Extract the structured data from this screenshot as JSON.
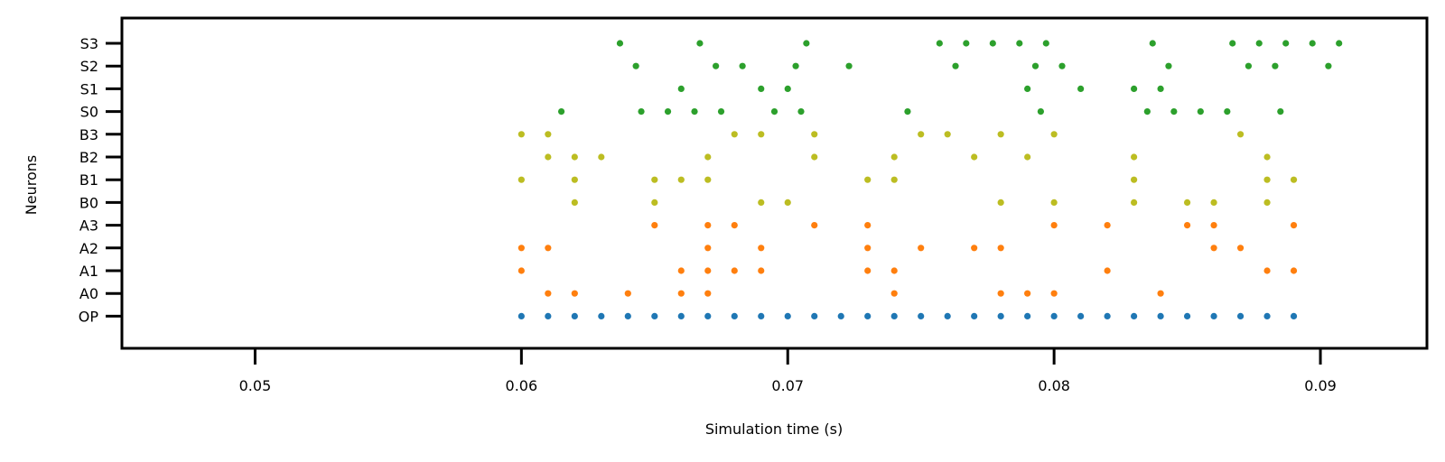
{
  "chart_data": {
    "type": "scatter",
    "title": "",
    "xlabel": "Simulation time (s)",
    "ylabel": "Neurons",
    "xlim": [
      0.045,
      0.094
    ],
    "xticks": [
      0.05,
      0.06,
      0.07,
      0.08,
      0.09
    ],
    "xtick_labels": [
      "0.05",
      "0.06",
      "0.07",
      "0.08",
      "0.09"
    ],
    "grid": false,
    "legend": "none",
    "categories": [
      "OP",
      "A0",
      "A1",
      "A2",
      "A3",
      "B0",
      "B1",
      "B2",
      "B3",
      "S0",
      "S1",
      "S2",
      "S3"
    ],
    "series": [
      {
        "color": "#1f77b4",
        "points": [
          [
            "OP",
            0.06
          ],
          [
            "OP",
            0.061
          ],
          [
            "OP",
            0.062
          ],
          [
            "OP",
            0.063
          ],
          [
            "OP",
            0.064
          ],
          [
            "OP",
            0.065
          ],
          [
            "OP",
            0.066
          ],
          [
            "OP",
            0.067
          ],
          [
            "OP",
            0.068
          ],
          [
            "OP",
            0.069
          ],
          [
            "OP",
            0.07
          ],
          [
            "OP",
            0.071
          ],
          [
            "OP",
            0.072
          ],
          [
            "OP",
            0.073
          ],
          [
            "OP",
            0.074
          ],
          [
            "OP",
            0.075
          ],
          [
            "OP",
            0.076
          ],
          [
            "OP",
            0.077
          ],
          [
            "OP",
            0.078
          ],
          [
            "OP",
            0.079
          ],
          [
            "OP",
            0.08
          ],
          [
            "OP",
            0.081
          ],
          [
            "OP",
            0.082
          ],
          [
            "OP",
            0.083
          ],
          [
            "OP",
            0.084
          ],
          [
            "OP",
            0.085
          ],
          [
            "OP",
            0.086
          ],
          [
            "OP",
            0.087
          ],
          [
            "OP",
            0.088
          ],
          [
            "OP",
            0.089
          ]
        ]
      },
      {
        "color": "#ff7f0e",
        "points": [
          [
            "A0",
            0.061
          ],
          [
            "A0",
            0.062
          ],
          [
            "A0",
            0.064
          ],
          [
            "A0",
            0.066
          ],
          [
            "A0",
            0.067
          ],
          [
            "A0",
            0.074
          ],
          [
            "A0",
            0.078
          ],
          [
            "A0",
            0.079
          ],
          [
            "A0",
            0.08
          ],
          [
            "A0",
            0.084
          ],
          [
            "A1",
            0.06
          ],
          [
            "A1",
            0.066
          ],
          [
            "A1",
            0.067
          ],
          [
            "A1",
            0.068
          ],
          [
            "A1",
            0.069
          ],
          [
            "A1",
            0.073
          ],
          [
            "A1",
            0.074
          ],
          [
            "A1",
            0.082
          ],
          [
            "A1",
            0.088
          ],
          [
            "A1",
            0.089
          ],
          [
            "A2",
            0.06
          ],
          [
            "A2",
            0.061
          ],
          [
            "A2",
            0.067
          ],
          [
            "A2",
            0.069
          ],
          [
            "A2",
            0.073
          ],
          [
            "A2",
            0.075
          ],
          [
            "A2",
            0.077
          ],
          [
            "A2",
            0.078
          ],
          [
            "A2",
            0.086
          ],
          [
            "A2",
            0.087
          ],
          [
            "A3",
            0.065
          ],
          [
            "A3",
            0.067
          ],
          [
            "A3",
            0.068
          ],
          [
            "A3",
            0.071
          ],
          [
            "A3",
            0.073
          ],
          [
            "A3",
            0.08
          ],
          [
            "A3",
            0.082
          ],
          [
            "A3",
            0.085
          ],
          [
            "A3",
            0.086
          ],
          [
            "A3",
            0.089
          ]
        ]
      },
      {
        "color": "#bcbd22",
        "points": [
          [
            "B0",
            0.062
          ],
          [
            "B0",
            0.065
          ],
          [
            "B0",
            0.069
          ],
          [
            "B0",
            0.07
          ],
          [
            "B0",
            0.078
          ],
          [
            "B0",
            0.08
          ],
          [
            "B0",
            0.083
          ],
          [
            "B0",
            0.085
          ],
          [
            "B0",
            0.086
          ],
          [
            "B0",
            0.088
          ],
          [
            "B1",
            0.06
          ],
          [
            "B1",
            0.062
          ],
          [
            "B1",
            0.065
          ],
          [
            "B1",
            0.066
          ],
          [
            "B1",
            0.067
          ],
          [
            "B1",
            0.073
          ],
          [
            "B1",
            0.074
          ],
          [
            "B1",
            0.083
          ],
          [
            "B1",
            0.088
          ],
          [
            "B1",
            0.089
          ],
          [
            "B2",
            0.061
          ],
          [
            "B2",
            0.062
          ],
          [
            "B2",
            0.063
          ],
          [
            "B2",
            0.067
          ],
          [
            "B2",
            0.071
          ],
          [
            "B2",
            0.074
          ],
          [
            "B2",
            0.077
          ],
          [
            "B2",
            0.079
          ],
          [
            "B2",
            0.083
          ],
          [
            "B2",
            0.088
          ],
          [
            "B3",
            0.06
          ],
          [
            "B3",
            0.061
          ],
          [
            "B3",
            0.068
          ],
          [
            "B3",
            0.069
          ],
          [
            "B3",
            0.071
          ],
          [
            "B3",
            0.075
          ],
          [
            "B3",
            0.076
          ],
          [
            "B3",
            0.078
          ],
          [
            "B3",
            0.08
          ],
          [
            "B3",
            0.087
          ]
        ]
      },
      {
        "color": "#2ca02c",
        "points": [
          [
            "S0",
            0.0615
          ],
          [
            "S0",
            0.0645
          ],
          [
            "S0",
            0.0655
          ],
          [
            "S0",
            0.0665
          ],
          [
            "S0",
            0.0675
          ],
          [
            "S0",
            0.0695
          ],
          [
            "S0",
            0.0705
          ],
          [
            "S0",
            0.0745
          ],
          [
            "S0",
            0.0795
          ],
          [
            "S0",
            0.0835
          ],
          [
            "S0",
            0.0845
          ],
          [
            "S0",
            0.0855
          ],
          [
            "S0",
            0.0865
          ],
          [
            "S0",
            0.0885
          ],
          [
            "S1",
            0.066
          ],
          [
            "S1",
            0.069
          ],
          [
            "S1",
            0.07
          ],
          [
            "S1",
            0.079
          ],
          [
            "S1",
            0.081
          ],
          [
            "S1",
            0.083
          ],
          [
            "S1",
            0.084
          ],
          [
            "S2",
            0.0643
          ],
          [
            "S2",
            0.0673
          ],
          [
            "S2",
            0.0683
          ],
          [
            "S2",
            0.0703
          ],
          [
            "S2",
            0.0723
          ],
          [
            "S2",
            0.0763
          ],
          [
            "S2",
            0.0793
          ],
          [
            "S2",
            0.0803
          ],
          [
            "S2",
            0.0843
          ],
          [
            "S2",
            0.0873
          ],
          [
            "S2",
            0.0883
          ],
          [
            "S2",
            0.0903
          ],
          [
            "S3",
            0.0637
          ],
          [
            "S3",
            0.0667
          ],
          [
            "S3",
            0.0707
          ],
          [
            "S3",
            0.0757
          ],
          [
            "S3",
            0.0767
          ],
          [
            "S3",
            0.0777
          ],
          [
            "S3",
            0.0787
          ],
          [
            "S3",
            0.0797
          ],
          [
            "S3",
            0.0837
          ],
          [
            "S3",
            0.0867
          ],
          [
            "S3",
            0.0877
          ],
          [
            "S3",
            0.0887
          ],
          [
            "S3",
            0.0897
          ],
          [
            "S3",
            0.0907
          ]
        ]
      }
    ]
  }
}
